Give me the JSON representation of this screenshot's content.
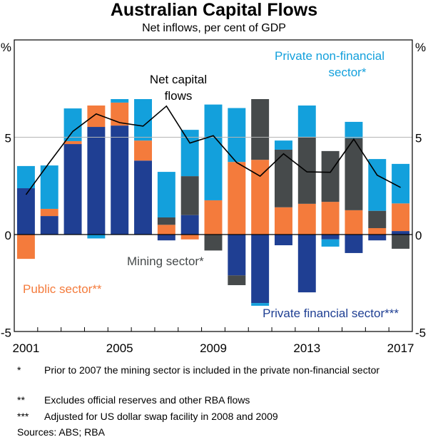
{
  "chart_data": {
    "type": "bar",
    "stacked": true,
    "title": "Australian Capital Flows",
    "subtitle": "Net inflows, per cent of GDP",
    "ylabel_left": "%",
    "ylabel_right": "%",
    "ylim": [
      -5,
      10
    ],
    "yticks": [
      -5,
      0,
      5
    ],
    "xticks": [
      "2001",
      "2005",
      "2009",
      "2013",
      "2017"
    ],
    "categories": [
      "2001",
      "2002",
      "2003",
      "2004",
      "2005",
      "2006",
      "2007",
      "2008",
      "2009",
      "2010",
      "2011",
      "2012",
      "2013",
      "2014",
      "2015",
      "2016",
      "2017"
    ],
    "grid": "y=5 horizontal line",
    "series": [
      {
        "name": "Private financial sector***",
        "color": "#1f3f93",
        "values": [
          2.38,
          0.95,
          4.65,
          5.53,
          5.6,
          3.8,
          -0.3,
          1.0,
          0,
          -2.1,
          -3.52,
          -0.55,
          -2.97,
          -0.25,
          -0.95,
          -0.3,
          0.18
        ]
      },
      {
        "name": "Public sector**",
        "color": "#f47b3c",
        "values": [
          -1.25,
          0.37,
          0.15,
          1.1,
          1.18,
          1.03,
          0.5,
          -0.25,
          1.76,
          3.73,
          3.84,
          1.4,
          1.58,
          1.68,
          1.25,
          0.33,
          1.42
        ]
      },
      {
        "name": "Mining sector*",
        "color": "#464a4b",
        "values": [
          0,
          0,
          0,
          0,
          0,
          0,
          0.38,
          2.0,
          -0.82,
          -0.5,
          3.12,
          2.96,
          3.44,
          2.61,
          3.7,
          0.89,
          -0.73
        ]
      },
      {
        "name": "Private non-financial sector*",
        "color": "#13a0dc",
        "values": [
          1.14,
          2.23,
          1.68,
          -0.2,
          0.18,
          2.13,
          2.34,
          2.38,
          4.92,
          2.77,
          -0.14,
          0.47,
          1.61,
          -0.37,
          0.84,
          2.66,
          2.03
        ]
      }
    ],
    "line": {
      "name": "Net capital flows",
      "color": "#000000",
      "values": [
        2.05,
        3.7,
        5.3,
        6.2,
        5.75,
        5.57,
        6.6,
        4.7,
        5.08,
        3.7,
        3.0,
        4.15,
        3.22,
        3.2,
        4.9,
        3.05,
        2.42
      ]
    },
    "annotations": [
      {
        "text": "Net capital flows",
        "series": "line"
      },
      {
        "text": "Private non-financial sector*",
        "series": "Private non-financial sector*"
      },
      {
        "text": "Mining sector*",
        "series": "Mining sector*"
      },
      {
        "text": "Public sector**",
        "series": "Public sector**"
      },
      {
        "text": "Private financial sector***",
        "series": "Private financial sector***"
      }
    ]
  },
  "labels": {
    "net_line1": "Net capital",
    "net_line2": "flows",
    "pnf_line1": "Private non-financial",
    "pnf_line2": "sector*",
    "mining": "Mining sector*",
    "public": "Public sector**",
    "pfs": "Private financial sector***"
  },
  "footnotes": [
    {
      "mark": "*",
      "text": "Prior to 2007 the mining sector is included in the private non-financial sector"
    },
    {
      "mark": "**",
      "text": "Excludes official reserves and other RBA flows"
    },
    {
      "mark": "***",
      "text": "Adjusted for US dollar swap facility in 2008 and 2009"
    }
  ],
  "sources": "Sources: ABS; RBA"
}
